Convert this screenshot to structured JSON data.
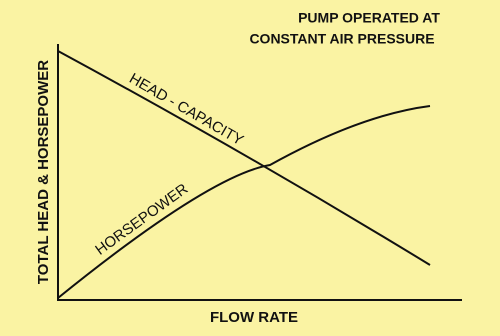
{
  "title_lines": [
    "PUMP OPERATED AT",
    "CONSTANT AIR PRESSURE"
  ],
  "x_axis_label": "FLOW RATE",
  "y_axis_label": "TOTAL HEAD & HORSEPOWER",
  "curves": [
    {
      "label": "HEAD - CAPACITY"
    },
    {
      "label": "HORSEPOWER"
    }
  ]
}
